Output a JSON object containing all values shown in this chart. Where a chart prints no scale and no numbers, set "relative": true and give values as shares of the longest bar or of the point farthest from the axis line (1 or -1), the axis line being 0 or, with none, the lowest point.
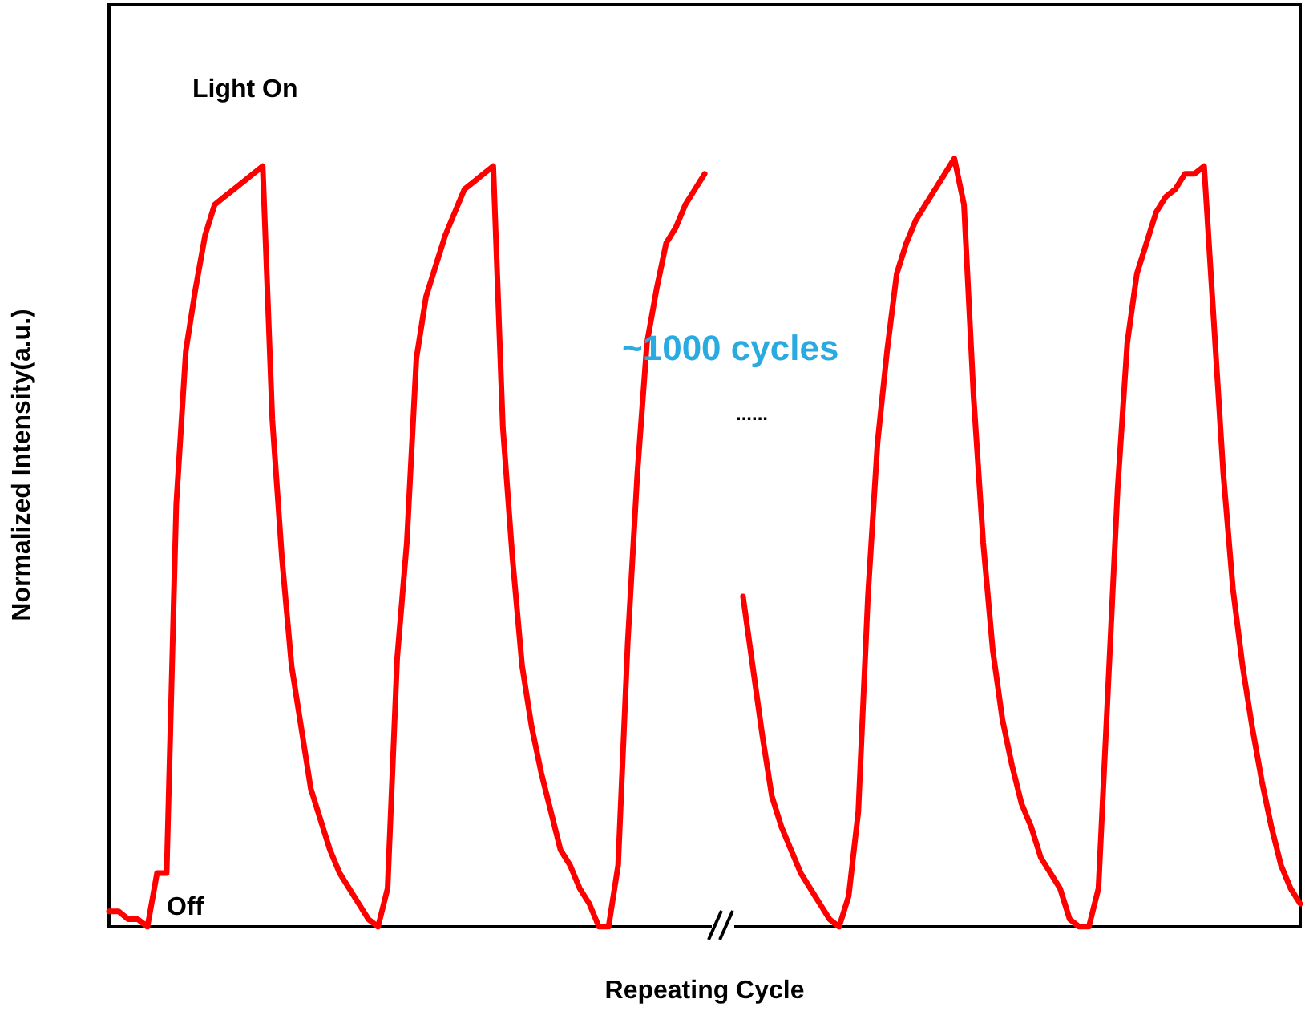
{
  "chart_data": {
    "type": "line",
    "relative": true,
    "xlabel": "Repeating Cycle",
    "ylabel": "Normalized Intensity(a.u.)",
    "marker": "none",
    "line_style": "solid",
    "annotations": [
      "Light On",
      "Off",
      "~1000 cycles",
      "......"
    ],
    "categories": [
      null,
      null,
      null,
      null,
      null,
      null,
      null,
      null,
      null,
      null,
      null,
      null,
      null,
      null,
      null,
      null,
      null,
      null,
      null,
      null,
      null,
      null,
      null,
      null,
      null,
      null,
      null,
      null,
      null,
      null,
      null,
      null,
      null,
      null,
      null,
      null,
      null,
      null,
      null,
      null,
      null,
      null,
      null,
      null,
      null,
      null,
      null,
      null,
      null,
      null,
      null,
      null,
      null,
      null,
      null,
      null,
      null,
      null,
      null,
      null,
      null,
      null,
      null,
      null,
      null,
      null,
      null,
      null,
      null,
      null,
      null,
      null,
      null,
      null,
      null,
      null,
      null,
      null,
      null,
      null,
      null,
      null,
      null,
      null,
      null,
      null,
      null,
      null,
      null,
      null,
      null,
      null,
      null,
      null,
      null,
      null,
      null,
      null,
      null,
      null,
      null,
      null,
      null,
      null,
      null,
      null,
      null,
      null,
      null,
      null,
      null,
      null,
      null,
      null,
      null,
      null,
      null,
      null,
      null,
      null,
      null,
      null,
      null,
      null,
      null
    ],
    "series": [
      {
        "color": "#ff0000",
        "values": [
          0.02,
          0.02,
          0.01,
          0.01,
          0.0,
          0.07,
          0.07,
          0.55,
          0.75,
          0.83,
          0.9,
          0.94,
          0.95,
          0.96,
          0.97,
          0.98,
          0.99,
          0.66,
          0.48,
          0.34,
          0.26,
          0.18,
          0.14,
          0.1,
          0.07,
          0.05,
          0.03,
          0.01,
          0.0,
          0.05,
          0.35,
          0.5,
          0.74,
          0.82,
          0.86,
          0.9,
          0.93,
          0.96,
          0.97,
          0.98,
          0.99,
          0.65,
          0.48,
          0.34,
          0.26,
          0.2,
          0.15,
          0.1,
          0.08,
          0.05,
          0.03,
          0.0,
          0.0,
          0.08,
          0.37,
          0.59,
          0.76,
          0.83,
          0.89,
          0.91,
          0.94,
          0.96,
          0.98,
          null,
          null,
          null,
          null,
          null,
          null,
          null,
          null,
          null,
          null,
          null,
          null,
          null,
          null,
          null,
          null,
          null,
          null,
          null,
          null,
          null,
          null,
          null,
          null,
          null,
          null,
          null,
          null,
          null,
          null,
          null,
          null,
          null,
          null,
          null,
          null,
          null,
          null,
          null,
          null,
          null,
          null,
          null,
          null,
          null,
          null,
          null,
          null,
          null,
          null,
          null,
          null,
          null,
          null,
          null,
          null,
          null,
          null,
          null,
          null,
          null,
          null
        ]
      },
      {
        "color": "#ff0000",
        "values": [
          null,
          null,
          null,
          null,
          null,
          null,
          null,
          null,
          null,
          null,
          null,
          null,
          null,
          null,
          null,
          null,
          null,
          null,
          null,
          null,
          null,
          null,
          null,
          null,
          null,
          null,
          null,
          null,
          null,
          null,
          null,
          null,
          null,
          null,
          null,
          null,
          null,
          null,
          null,
          null,
          null,
          null,
          null,
          null,
          null,
          null,
          null,
          null,
          null,
          null,
          null,
          null,
          null,
          null,
          null,
          null,
          null,
          null,
          null,
          null,
          null,
          null,
          null,
          null,
          null,
          null,
          0.43,
          0.34,
          0.25,
          0.17,
          0.13,
          0.1,
          0.07,
          0.05,
          0.03,
          0.01,
          0.0,
          0.04,
          0.15,
          0.43,
          0.63,
          0.75,
          0.85,
          0.89,
          0.92,
          0.94,
          0.96,
          0.98,
          1.0,
          0.94,
          0.69,
          0.5,
          0.36,
          0.27,
          0.21,
          0.16,
          0.13,
          0.09,
          0.07,
          0.05,
          0.01,
          0.0,
          0.0,
          0.05,
          0.31,
          0.57,
          0.76,
          0.85,
          0.89,
          0.93,
          0.95,
          0.96,
          0.98,
          0.98,
          0.99,
          0.79,
          0.59,
          0.44,
          0.34,
          0.26,
          0.19,
          0.13,
          0.08,
          0.05,
          0.03
        ]
      }
    ]
  }
}
